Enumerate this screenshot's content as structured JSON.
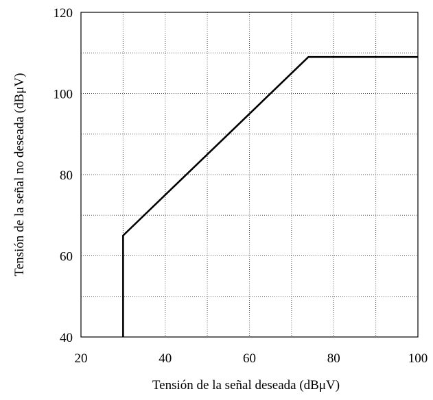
{
  "chart_data": {
    "type": "line",
    "title": "",
    "xlabel": "Tensión de la señal deseada (dBμV)",
    "ylabel": "Tensión de la señal no deseada (dBμV)",
    "xlim": [
      20,
      100
    ],
    "ylim": [
      40,
      120
    ],
    "x_ticks": [
      20,
      40,
      60,
      80,
      100
    ],
    "y_ticks": [
      40,
      60,
      80,
      100,
      120
    ],
    "x_grid_step": 10,
    "y_grid_step": 10,
    "grid": true,
    "series": [
      {
        "x": [
          30,
          30,
          74,
          100
        ],
        "y": [
          40,
          65,
          109,
          109
        ]
      }
    ]
  }
}
